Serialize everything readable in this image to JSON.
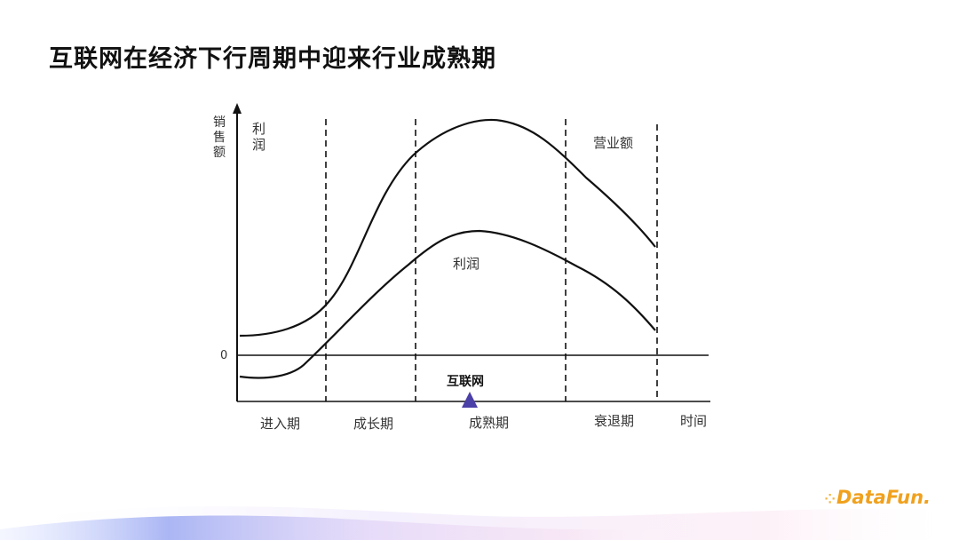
{
  "title": "互联网在经济下行周期中迎来行业成熟期",
  "diagram": {
    "y_axis_label": "销售额",
    "profit_axis_label": "利润",
    "zero_label": "0",
    "x_axis_label": "时间",
    "revenue_curve_label": "营业额",
    "profit_curve_label": "利润",
    "stages": [
      "进入期",
      "成长期",
      "成熟期",
      "衰退期"
    ],
    "marker_label": "互联网",
    "marker_color": "#4b3fa8"
  },
  "logo": {
    "text": "DataFun."
  },
  "colors": {
    "accent": "#f0a11e",
    "wave": "#9aa6f0"
  }
}
